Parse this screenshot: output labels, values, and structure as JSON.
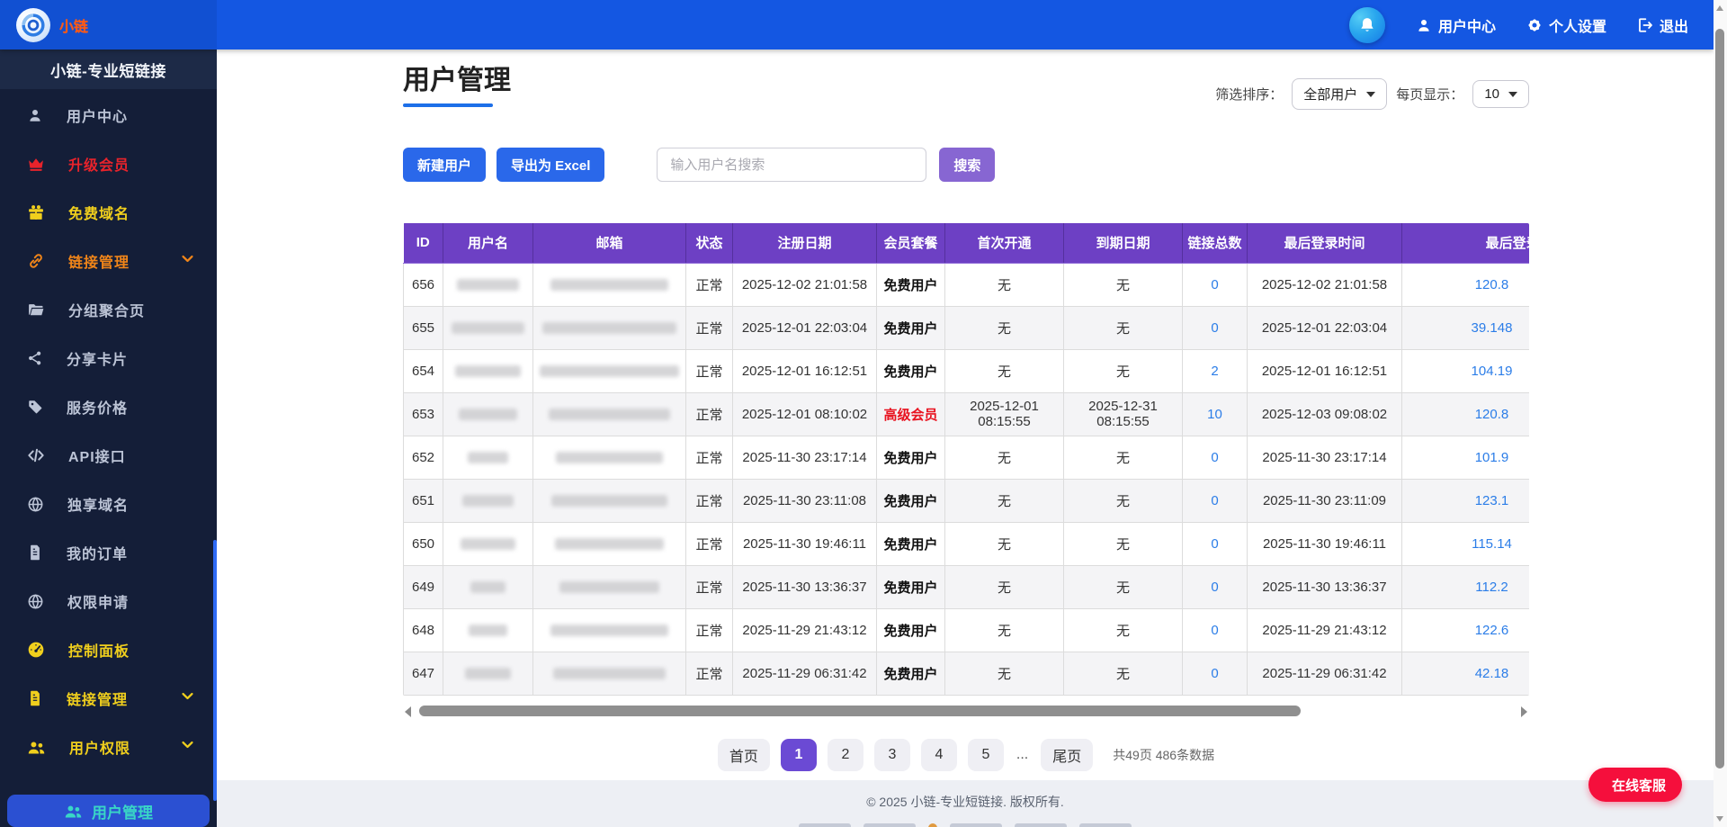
{
  "navbar": {
    "logo_text": "小链",
    "notification_icon": "bell-icon",
    "menu": [
      {
        "label": "用户中心",
        "icon": "user-icon"
      },
      {
        "label": "个人设置",
        "icon": "gear-icon"
      },
      {
        "label": "退出",
        "icon": "logout-icon"
      }
    ]
  },
  "sidebar": {
    "title": "小链-专业短链接",
    "items": [
      {
        "label": "用户中心",
        "icon": "user-icon",
        "color": "default",
        "chevron": false
      },
      {
        "label": "升级会员",
        "icon": "crown-icon",
        "color": "red",
        "chevron": false
      },
      {
        "label": "免费域名",
        "icon": "gift-icon",
        "color": "gold",
        "chevron": false
      },
      {
        "label": "链接管理",
        "icon": "link-icon",
        "color": "orange",
        "chevron": true
      },
      {
        "label": "分组聚合页",
        "icon": "folder-icon",
        "color": "default",
        "chevron": false
      },
      {
        "label": "分享卡片",
        "icon": "share-icon",
        "color": "default",
        "chevron": false
      },
      {
        "label": "服务价格",
        "icon": "tag-icon",
        "color": "default",
        "chevron": false
      },
      {
        "label": "API接口",
        "icon": "code-icon",
        "color": "default",
        "chevron": false
      },
      {
        "label": "独享域名",
        "icon": "globe-icon",
        "color": "default",
        "chevron": false
      },
      {
        "label": "我的订单",
        "icon": "file-icon",
        "color": "default",
        "chevron": false
      },
      {
        "label": "权限申请",
        "icon": "globe-icon",
        "color": "default",
        "chevron": false
      },
      {
        "label": "控制面板",
        "icon": "dashboard-icon",
        "color": "gold",
        "chevron": false
      },
      {
        "label": "链接管理",
        "icon": "file-icon",
        "color": "gold",
        "chevron": true
      },
      {
        "label": "用户权限",
        "icon": "users-icon",
        "color": "gold",
        "chevron": true
      }
    ],
    "submenu_active": {
      "label": "用户管理",
      "icon": "users-icon"
    }
  },
  "page": {
    "title": "用户管理",
    "filters": {
      "sort_label": "筛选排序：",
      "sort_value": "全部用户",
      "per_page_label": "每页显示：",
      "per_page_value": "10"
    },
    "toolbar": {
      "new_user": "新建用户",
      "export_excel": "导出为 Excel",
      "search_placeholder": "输入用户名搜索",
      "search": "搜索"
    }
  },
  "table": {
    "headers": [
      "ID",
      "用户名",
      "邮箱",
      "状态",
      "注册日期",
      "会员套餐",
      "首次开通",
      "到期日期",
      "链接总数",
      "最后登录时间",
      "最后登录IP"
    ],
    "rows": [
      {
        "id": "656",
        "status": "正常",
        "registered": "2025-12-02 21:01:58",
        "plan": "免费用户",
        "plan_style": "free",
        "first_open": "无",
        "expire": "无",
        "links": "0",
        "last_login": "2025-12-02 21:01:58",
        "ip": "120.8"
      },
      {
        "id": "655",
        "status": "正常",
        "registered": "2025-12-01 22:03:04",
        "plan": "免费用户",
        "plan_style": "free",
        "first_open": "无",
        "expire": "无",
        "links": "0",
        "last_login": "2025-12-01 22:03:04",
        "ip": "39.148"
      },
      {
        "id": "654",
        "status": "正常",
        "registered": "2025-12-01 16:12:51",
        "plan": "免费用户",
        "plan_style": "free",
        "first_open": "无",
        "expire": "无",
        "links": "2",
        "last_login": "2025-12-01 16:12:51",
        "ip": "104.19"
      },
      {
        "id": "653",
        "status": "正常",
        "registered": "2025-12-01 08:10:02",
        "plan": "高级会员",
        "plan_style": "vip",
        "first_open": "2025-12-01 08:15:55",
        "expire": "2025-12-31 08:15:55",
        "links": "10",
        "last_login": "2025-12-03 09:08:02",
        "ip": "120.8"
      },
      {
        "id": "652",
        "status": "正常",
        "registered": "2025-11-30 23:17:14",
        "plan": "免费用户",
        "plan_style": "free",
        "first_open": "无",
        "expire": "无",
        "links": "0",
        "last_login": "2025-11-30 23:17:14",
        "ip": "101.9"
      },
      {
        "id": "651",
        "status": "正常",
        "registered": "2025-11-30 23:11:08",
        "plan": "免费用户",
        "plan_style": "free",
        "first_open": "无",
        "expire": "无",
        "links": "0",
        "last_login": "2025-11-30 23:11:09",
        "ip": "123.1"
      },
      {
        "id": "650",
        "status": "正常",
        "registered": "2025-11-30 19:46:11",
        "plan": "免费用户",
        "plan_style": "free",
        "first_open": "无",
        "expire": "无",
        "links": "0",
        "last_login": "2025-11-30 19:46:11",
        "ip": "115.14"
      },
      {
        "id": "649",
        "status": "正常",
        "registered": "2025-11-30 13:36:37",
        "plan": "免费用户",
        "plan_style": "free",
        "first_open": "无",
        "expire": "无",
        "links": "0",
        "last_login": "2025-11-30 13:36:37",
        "ip": "112.2"
      },
      {
        "id": "648",
        "status": "正常",
        "registered": "2025-11-29 21:43:12",
        "plan": "免费用户",
        "plan_style": "free",
        "first_open": "无",
        "expire": "无",
        "links": "0",
        "last_login": "2025-11-29 21:43:12",
        "ip": "122.6"
      },
      {
        "id": "647",
        "status": "正常",
        "registered": "2025-11-29 06:31:42",
        "plan": "免费用户",
        "plan_style": "free",
        "first_open": "无",
        "expire": "无",
        "links": "0",
        "last_login": "2025-11-29 06:31:42",
        "ip": "42.18"
      }
    ]
  },
  "pagination": {
    "pages": [
      "首页",
      "1",
      "2",
      "3",
      "4",
      "5",
      "...",
      "尾页"
    ],
    "active": "1",
    "summary": "共49页 486条数据"
  },
  "footer": {
    "copyright": "© 2025 小链-专业短链接. 版权所有."
  },
  "chat": {
    "label": "在线客服",
    "icon": "chat-icon"
  },
  "colors": {
    "navbar_blue": "#1457e2",
    "sidebar_navy": "#141e38",
    "table_header_purple": "#6d40c4",
    "primary_button_blue": "#2a68ea",
    "search_button_purple": "#8766d2",
    "active_page_purple": "#6b4ad4",
    "vip_red": "#e8121f",
    "upgrade_red": "#e8232b",
    "gold": "#f0cf1d",
    "orange": "#f08519",
    "active_teal": "#39d6c6",
    "link_blue": "#2b7de8",
    "chat_red": "#f50f3c"
  }
}
